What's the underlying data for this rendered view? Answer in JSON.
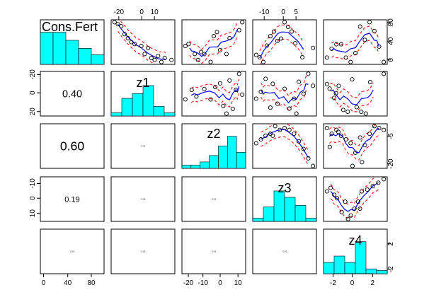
{
  "chart_data": {
    "type": "scatter",
    "variables": [
      "Cons.Fert",
      "z1",
      "z2",
      "z3",
      "z4"
    ],
    "colors": {
      "hist_fill": "#00FFFF",
      "smooth": "#0000FF",
      "band": "#FF0000",
      "points": "#000000",
      "frame": "#000000"
    },
    "ranges": {
      "Cons.Fert": [
        0,
        100
      ],
      "z1": [
        -25,
        22
      ],
      "z2": [
        -25,
        15
      ],
      "z3": [
        -15,
        15
      ],
      "z4": [
        -3,
        4
      ]
    },
    "ticks": {
      "top_z1": [
        "-20",
        "0",
        "10"
      ],
      "top_z3": [
        "-10",
        "0",
        "5"
      ],
      "bottom_cons": [
        "0",
        "40",
        "80"
      ],
      "bottom_z2": [
        "-20",
        "-10",
        "0",
        "10"
      ],
      "bottom_z4": [
        "-2",
        "0",
        "2"
      ],
      "left_z1": [
        "-20",
        "0",
        "20"
      ],
      "left_z3": [
        "-10",
        "0",
        "10"
      ],
      "right_cons": [
        "0",
        "40",
        "80"
      ],
      "right_z2": [
        "-20",
        "-5"
      ],
      "right_z4": [
        "-2",
        "2"
      ]
    },
    "correlations": [
      {
        "row": 1,
        "col": 0,
        "value": "0.40"
      },
      {
        "row": 2,
        "col": 0,
        "value": "0.60"
      },
      {
        "row": 3,
        "col": 0,
        "value": "0.19"
      },
      {
        "row": 2,
        "col": 1,
        "value": "-0.01"
      },
      {
        "row": 3,
        "col": 1,
        "value": "-0.01"
      },
      {
        "row": 4,
        "col": 1,
        "value": "-0.01"
      },
      {
        "row": 3,
        "col": 2,
        "value": "-0.01"
      },
      {
        "row": 4,
        "col": 2,
        "value": "-0.01"
      },
      {
        "row": 4,
        "col": 3,
        "value": "-0.01"
      },
      {
        "row": 4,
        "col": 0,
        "value": "-0.01"
      }
    ],
    "histograms": {
      "Cons.Fert": [
        1.0,
        1.0,
        0.75,
        0.5,
        0.3
      ],
      "z1": [
        0.1,
        0.55,
        0.7,
        0.95,
        0.3,
        0.1
      ],
      "z2": [
        0.1,
        0.1,
        0.2,
        0.4,
        0.7,
        1.0,
        0.5
      ],
      "z3": [
        0.1,
        0.45,
        0.95,
        0.75,
        0.5,
        0.1
      ],
      "z4": [
        0.35,
        0.55,
        0.35,
        1.0,
        0.15,
        0.1
      ]
    },
    "scatter": {
      "0-1": [
        [
          2,
          100
        ],
        [
          3,
          95
        ],
        [
          4,
          90
        ],
        [
          5,
          70
        ],
        [
          6,
          60
        ],
        [
          7,
          50
        ],
        [
          8,
          45
        ],
        [
          10,
          40
        ],
        [
          11,
          20
        ],
        [
          13,
          10
        ],
        [
          15,
          15
        ],
        [
          16,
          0
        ],
        [
          14,
          5
        ],
        [
          17,
          10
        ],
        [
          19,
          5
        ],
        [
          12,
          35
        ]
      ],
      "0-2": [
        [
          1,
          40
        ],
        [
          2,
          45
        ],
        [
          4,
          20
        ],
        [
          5,
          5
        ],
        [
          6,
          25
        ],
        [
          7,
          20
        ],
        [
          10,
          65
        ],
        [
          11,
          75
        ],
        [
          12,
          30
        ],
        [
          14,
          20
        ],
        [
          18,
          80
        ],
        [
          19,
          100
        ],
        [
          9,
          0
        ],
        [
          15,
          60
        ]
      ],
      "0-3": [
        [
          1,
          20
        ],
        [
          2,
          15
        ],
        [
          3,
          5
        ],
        [
          4,
          40
        ],
        [
          5,
          60
        ],
        [
          6,
          70
        ],
        [
          7,
          50
        ],
        [
          8,
          55
        ],
        [
          9,
          90
        ],
        [
          10,
          80
        ],
        [
          11,
          70
        ],
        [
          12,
          45
        ],
        [
          14,
          15
        ],
        [
          17,
          35
        ]
      ],
      "0-4": [
        [
          1,
          20
        ],
        [
          2,
          40
        ],
        [
          3,
          50
        ],
        [
          4,
          50
        ],
        [
          5,
          20
        ],
        [
          6,
          10
        ],
        [
          7,
          30
        ],
        [
          8,
          90
        ],
        [
          9,
          60
        ],
        [
          10,
          100
        ],
        [
          12,
          45
        ],
        [
          13,
          10
        ],
        [
          11,
          80
        ]
      ],
      "1-2": [
        [
          -22,
          -5
        ],
        [
          -18,
          5
        ],
        [
          -15,
          -2
        ],
        [
          -10,
          6
        ],
        [
          -6,
          -5
        ],
        [
          -3,
          8
        ],
        [
          0,
          12
        ],
        [
          2,
          -12
        ],
        [
          4,
          -20
        ],
        [
          6,
          15
        ],
        [
          8,
          -15
        ],
        [
          10,
          5
        ],
        [
          12,
          22
        ],
        [
          14,
          0
        ]
      ],
      "1-3": [
        [
          -12,
          -5
        ],
        [
          -10,
          2
        ],
        [
          -8,
          15
        ],
        [
          -5,
          10
        ],
        [
          -3,
          -10
        ],
        [
          0,
          5
        ],
        [
          2,
          -15
        ],
        [
          4,
          -5
        ],
        [
          6,
          12
        ],
        [
          8,
          0
        ],
        [
          10,
          20
        ],
        [
          12,
          8
        ],
        [
          -6,
          -14
        ],
        [
          5,
          -20
        ]
      ],
      "1-4": [
        [
          -2.8,
          10
        ],
        [
          -2.5,
          5
        ],
        [
          -2,
          -5
        ],
        [
          -1.5,
          8
        ],
        [
          -1,
          -18
        ],
        [
          -0.5,
          -20
        ],
        [
          0,
          15
        ],
        [
          0.5,
          -15
        ],
        [
          1,
          -20
        ],
        [
          1.5,
          -22
        ],
        [
          2,
          12
        ],
        [
          3.5,
          21
        ],
        [
          -1.8,
          0
        ]
      ],
      "2-3": [
        [
          -12,
          -7
        ],
        [
          -10,
          -5
        ],
        [
          -8,
          -3
        ],
        [
          -6,
          -2
        ],
        [
          -4,
          2
        ],
        [
          -2,
          0
        ],
        [
          0,
          1
        ],
        [
          2,
          0
        ],
        [
          4,
          -2
        ],
        [
          6,
          -6
        ],
        [
          8,
          -10
        ],
        [
          10,
          -15
        ],
        [
          12,
          -19
        ],
        [
          -5,
          -3
        ]
      ],
      "2-4": [
        [
          -2.5,
          0
        ],
        [
          -2,
          -3
        ],
        [
          -1.5,
          -1
        ],
        [
          -1,
          -4
        ],
        [
          -0.5,
          -6
        ],
        [
          0,
          -8
        ],
        [
          0.5,
          -13
        ],
        [
          1,
          -5
        ],
        [
          1.5,
          -9
        ],
        [
          2,
          -3
        ],
        [
          2.5,
          1
        ],
        [
          3,
          0
        ],
        [
          3.5,
          -1
        ],
        [
          -2.2,
          -10
        ],
        [
          0.2,
          -20
        ],
        [
          1.2,
          -18
        ],
        [
          -1.3,
          -2
        ]
      ],
      "3-4": [
        [
          -2.6,
          2
        ],
        [
          -2.2,
          4
        ],
        [
          -1.8,
          0
        ],
        [
          -1.5,
          -2
        ],
        [
          -1,
          -10
        ],
        [
          -0.6,
          -4
        ],
        [
          0,
          -12
        ],
        [
          0.4,
          -8
        ],
        [
          0.8,
          -4
        ],
        [
          1.2,
          2
        ],
        [
          1.8,
          3
        ],
        [
          2.4,
          5
        ],
        [
          3,
          7
        ],
        [
          3.6,
          9
        ],
        [
          -0.3,
          -14
        ],
        [
          1.0,
          -8
        ]
      ]
    }
  }
}
